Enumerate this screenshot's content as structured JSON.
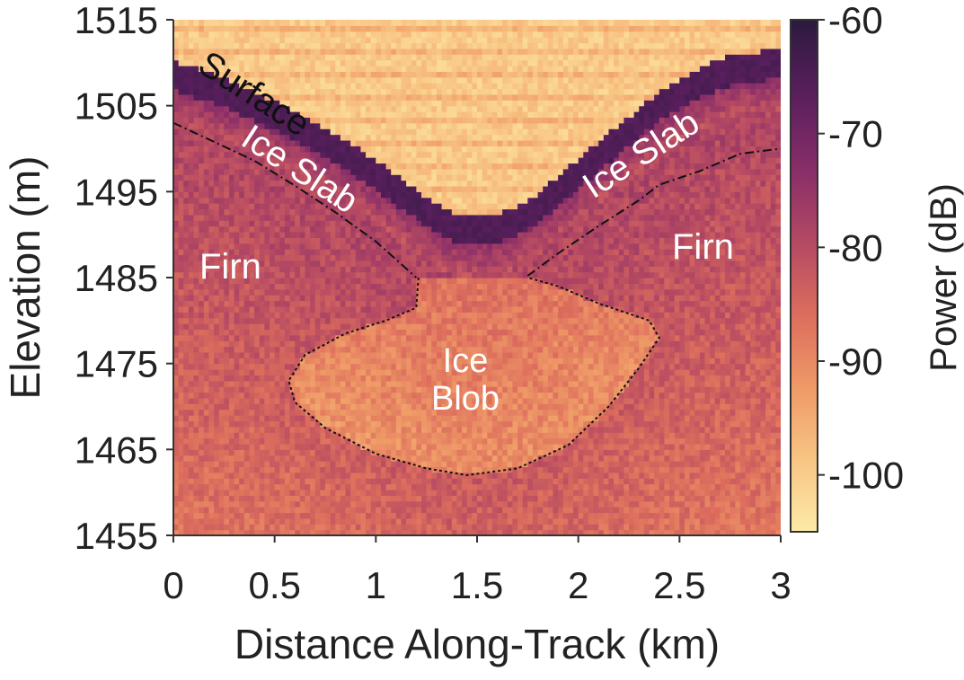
{
  "chart_data": {
    "type": "heatmap",
    "title": "",
    "xlabel": "Distance Along-Track (km)",
    "ylabel": "Elevation (m)",
    "xlim": [
      0,
      3
    ],
    "ylim": [
      1455,
      1515
    ],
    "x_ticks": [
      "0",
      "0.5",
      "1",
      "1.5",
      "2",
      "2.5",
      "3"
    ],
    "y_ticks": [
      "1515",
      "1505",
      "1495",
      "1485",
      "1475",
      "1465",
      "1455"
    ],
    "colorbar": {
      "label": "Power (dB)",
      "range": [
        -105,
        -60
      ],
      "ticks": [
        "-60",
        "-70",
        "-80",
        "-90",
        "-100"
      ],
      "colormap": [
        "#fdeaa8",
        "#f8c583",
        "#ef9a67",
        "#dd6e5d",
        "#b64a62",
        "#8a2f68",
        "#5b1f5e",
        "#2c1a3e"
      ]
    },
    "surface_elevation": {
      "x": [
        0,
        0.2,
        0.4,
        0.6,
        0.8,
        1.0,
        1.2,
        1.35,
        1.5,
        1.65,
        1.8,
        2.0,
        2.2,
        2.4,
        2.6,
        2.8,
        3.0
      ],
      "y": [
        1509,
        1507.5,
        1505.5,
        1503.2,
        1500.6,
        1497.5,
        1494.0,
        1491.6,
        1490.9,
        1491.6,
        1493.6,
        1497.6,
        1501.6,
        1505.4,
        1508.3,
        1510.0,
        1510.3
      ]
    },
    "annotations": [
      {
        "text": "Surface"
      },
      {
        "text": "Ice Slab"
      },
      {
        "text": "Ice Slab"
      },
      {
        "text": "Firn"
      },
      {
        "text": "Firn"
      },
      {
        "text": "Ice"
      },
      {
        "text": "Blob"
      }
    ],
    "slab_base_left": {
      "x": [
        0,
        0.2,
        0.4,
        0.6,
        0.8,
        1.0,
        1.2
      ],
      "y": [
        1503,
        1500.8,
        1498.6,
        1495.7,
        1492.6,
        1489.2,
        1485.0
      ]
    },
    "slab_base_right": {
      "x": [
        1.75,
        1.9,
        2.1,
        2.3,
        2.4,
        2.6,
        2.8,
        3.0
      ],
      "y": [
        1485.2,
        1487.8,
        1491.0,
        1494.0,
        1495.8,
        1497.4,
        1499.4,
        1500.0
      ]
    },
    "ice_blob_outline": {
      "x": [
        1.21,
        1.2,
        1.05,
        0.85,
        0.65,
        0.57,
        0.6,
        0.75,
        1.0,
        1.25,
        1.45,
        1.7,
        1.95,
        2.15,
        2.3,
        2.4,
        2.35,
        2.1,
        1.9,
        1.75
      ],
      "y": [
        1485.0,
        1481.5,
        1480.0,
        1478.5,
        1476.0,
        1473.0,
        1470.5,
        1467.5,
        1464.5,
        1462.8,
        1462.0,
        1462.8,
        1465.5,
        1470.0,
        1474.5,
        1478.0,
        1480.0,
        1482.0,
        1484.0,
        1485.0
      ]
    }
  }
}
